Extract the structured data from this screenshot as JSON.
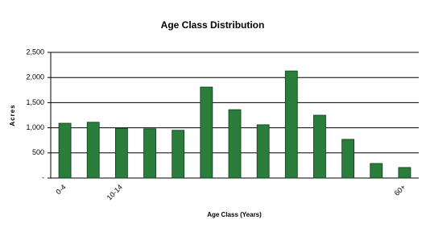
{
  "chart_data": {
    "type": "bar",
    "title": "Age Class Distribution",
    "x_label": "Age Class (Years)",
    "y_label": "Acres",
    "categories": [
      "0-4",
      null,
      "10-14",
      null,
      null,
      null,
      null,
      null,
      null,
      null,
      null,
      null,
      "60+"
    ],
    "values": [
      1090,
      1110,
      990,
      980,
      950,
      1810,
      1360,
      1060,
      2130,
      1250,
      770,
      290,
      210
    ],
    "color": "#2a7d3b",
    "ylim": [
      0,
      2500
    ],
    "yticks": [
      {
        "value": 0,
        "label": "-"
      },
      500,
      {
        "value": 1000,
        "label": "1,000"
      },
      {
        "value": 1500,
        "label": "1,500"
      },
      {
        "value": 2000,
        "label": "2,000"
      },
      {
        "value": 2500,
        "label": "2,500"
      }
    ],
    "grid": true
  }
}
